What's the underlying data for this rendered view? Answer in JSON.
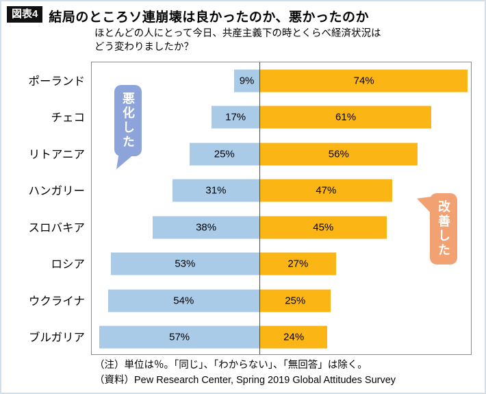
{
  "header": {
    "tag": "図表4",
    "title": "結局のところソ連崩壊は良かったのか、悪かったのか"
  },
  "subtitle_line1": "ほとんどの人にとって今日、共産主義下の時とくらべ経済状況は",
  "subtitle_line2": "どう変わりましたか？",
  "chart_data": {
    "type": "bar",
    "orientation": "diverging-horizontal",
    "unit": "%",
    "categories": [
      "ポーランド",
      "チェコ",
      "リトアニア",
      "ハンガリー",
      "スロバキア",
      "ロシア",
      "ウクライナ",
      "ブルガリア"
    ],
    "series": [
      {
        "name": "悪化した",
        "color": "#a9cbe8",
        "values": [
          9,
          17,
          25,
          31,
          38,
          53,
          54,
          57
        ]
      },
      {
        "name": "改善した",
        "color": "#fbb616",
        "values": [
          74,
          61,
          56,
          47,
          45,
          27,
          25,
          24
        ]
      }
    ],
    "annotations": [
      {
        "text": "悪化した",
        "color": "#8ca4d9",
        "side": "left"
      },
      {
        "text": "改善した",
        "color": "#f2a173",
        "side": "right"
      }
    ],
    "axis": {
      "zero_line": true,
      "xlim_left": 60,
      "xlim_right": 75,
      "grid": false
    },
    "value_labels": "inside-bar"
  },
  "notes": [
    "（注）単位は％。「同じ」、「わからない」、「無回答」は除く。",
    "（資料）Pew Research Center, Spring 2019 Global Attitudes Survey"
  ]
}
